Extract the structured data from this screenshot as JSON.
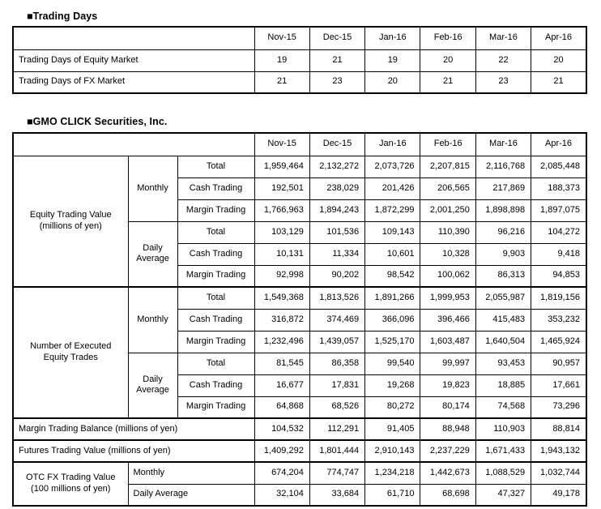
{
  "titles": {
    "t1": "■Trading Days",
    "t2": "■GMO CLICK Securities, Inc."
  },
  "months": [
    "Nov-15",
    "Dec-15",
    "Jan-16",
    "Feb-16",
    "Mar-16",
    "Apr-16"
  ],
  "trading_days": {
    "equity": {
      "label": "Trading Days of Equity Market",
      "values": [
        "19",
        "21",
        "19",
        "20",
        "22",
        "20"
      ]
    },
    "fx": {
      "label": "Trading Days of FX Market",
      "values": [
        "21",
        "23",
        "20",
        "21",
        "23",
        "21"
      ]
    }
  },
  "gmo": {
    "etv": {
      "label": "Equity Trading Value (millions of yen)",
      "monthly_label": "Monthly",
      "daily_label": "Daily Average",
      "rows": {
        "m_total": {
          "label": "Total",
          "values": [
            "1,959,464",
            "2,132,272",
            "2,073,726",
            "2,207,815",
            "2,116,768",
            "2,085,448"
          ]
        },
        "m_cash": {
          "label": "Cash Trading",
          "values": [
            "192,501",
            "238,029",
            "201,426",
            "206,565",
            "217,869",
            "188,373"
          ]
        },
        "m_margin": {
          "label": "Margin Trading",
          "values": [
            "1,766,963",
            "1,894,243",
            "1,872,299",
            "2,001,250",
            "1,898,898",
            "1,897,075"
          ]
        },
        "d_total": {
          "label": "Total",
          "values": [
            "103,129",
            "101,536",
            "109,143",
            "110,390",
            "96,216",
            "104,272"
          ]
        },
        "d_cash": {
          "label": "Cash Trading",
          "values": [
            "10,131",
            "11,334",
            "10,601",
            "10,328",
            "9,903",
            "9,418"
          ]
        },
        "d_margin": {
          "label": "Margin Trading",
          "values": [
            "92,998",
            "90,202",
            "98,542",
            "100,062",
            "86,313",
            "94,853"
          ]
        }
      }
    },
    "net": {
      "label": "Number of Executed Equity Trades",
      "monthly_label": "Monthly",
      "daily_label": "Daily Average",
      "rows": {
        "m_total": {
          "label": "Total",
          "values": [
            "1,549,368",
            "1,813,526",
            "1,891,266",
            "1,999,953",
            "2,055,987",
            "1,819,156"
          ]
        },
        "m_cash": {
          "label": "Cash Trading",
          "values": [
            "316,872",
            "374,469",
            "366,096",
            "396,466",
            "415,483",
            "353,232"
          ]
        },
        "m_margin": {
          "label": "Margin Trading",
          "values": [
            "1,232,496",
            "1,439,057",
            "1,525,170",
            "1,603,487",
            "1,640,504",
            "1,465,924"
          ]
        },
        "d_total": {
          "label": "Total",
          "values": [
            "81,545",
            "86,358",
            "99,540",
            "99,997",
            "93,453",
            "90,957"
          ]
        },
        "d_cash": {
          "label": "Cash Trading",
          "values": [
            "16,677",
            "17,831",
            "19,268",
            "19,823",
            "18,885",
            "17,661"
          ]
        },
        "d_margin": {
          "label": "Margin Trading",
          "values": [
            "64,868",
            "68,526",
            "80,272",
            "80,174",
            "74,568",
            "73,296"
          ]
        }
      }
    },
    "mtb": {
      "label": "Margin Trading Balance (millions of yen)",
      "values": [
        "104,532",
        "112,291",
        "91,405",
        "88,948",
        "110,903",
        "88,814"
      ]
    },
    "ftv": {
      "label": "Futures Trading Value (millions of yen)",
      "values": [
        "1,409,292",
        "1,801,444",
        "2,910,143",
        "2,237,229",
        "1,671,433",
        "1,943,132"
      ]
    },
    "otc": {
      "label": "OTC FX Trading Value (100 millions of yen)",
      "monthly": {
        "label": "Monthly",
        "values": [
          "674,204",
          "774,747",
          "1,234,218",
          "1,442,673",
          "1,088,529",
          "1,032,744"
        ]
      },
      "daily": {
        "label": "Daily Average",
        "values": [
          "32,104",
          "33,684",
          "61,710",
          "68,698",
          "47,327",
          "49,178"
        ]
      }
    }
  }
}
